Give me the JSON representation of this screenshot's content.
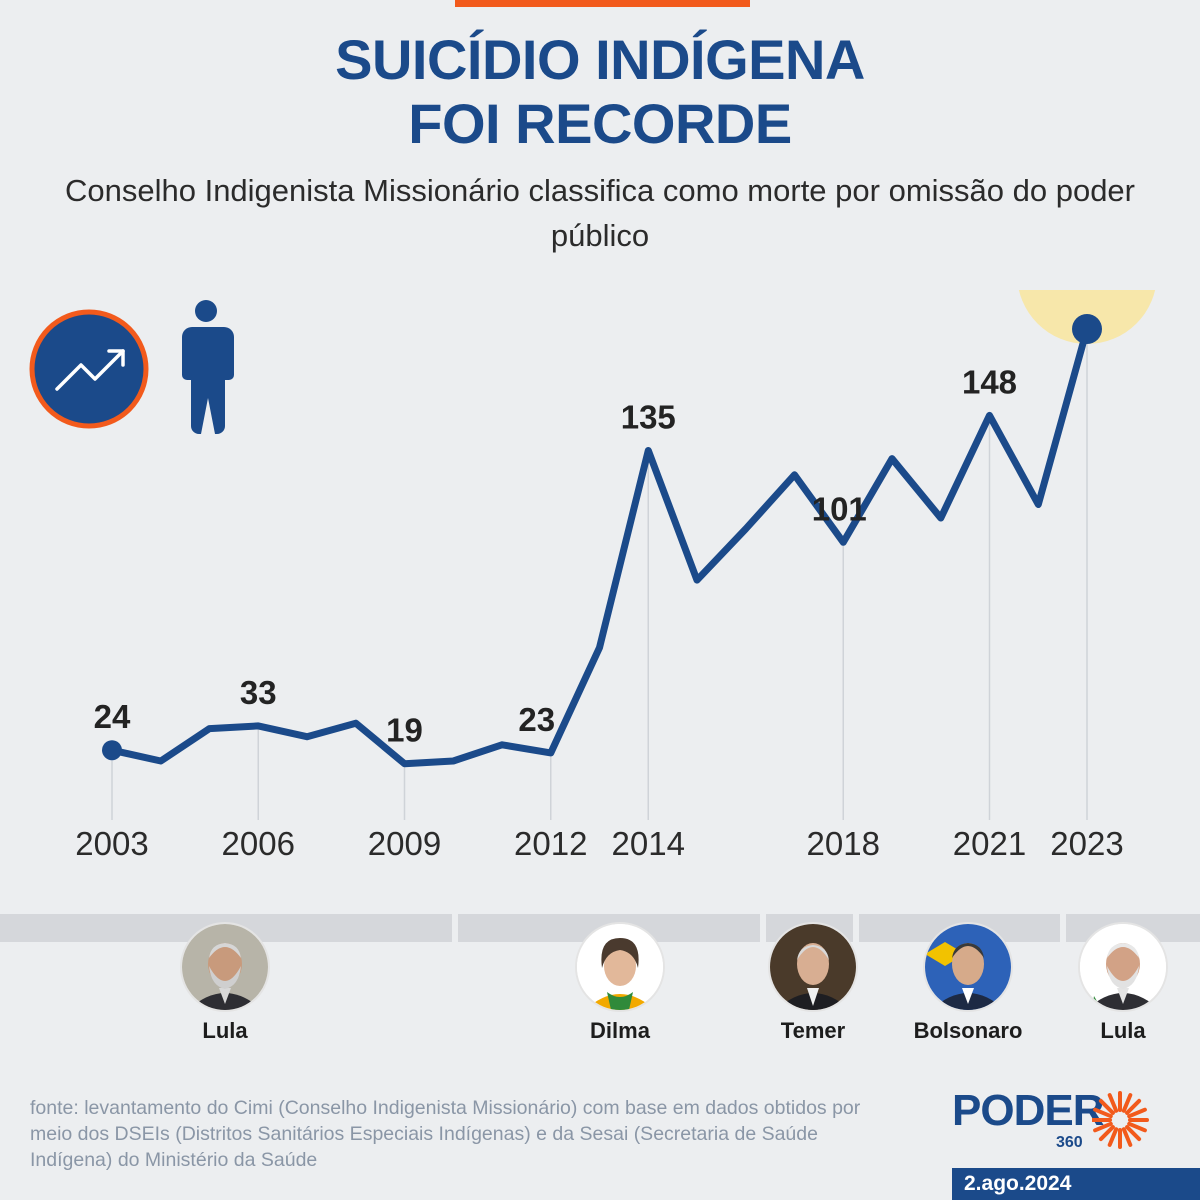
{
  "header": {
    "title_line1": "SUICÍDIO INDÍGENA",
    "title_line2": "FOI RECORDE",
    "subtitle": "Conselho Indigenista Missionário classifica como morte por omissão do poder público"
  },
  "icons": {
    "trend": "trend-up-icon",
    "person": "person-icon"
  },
  "colors": {
    "line": "#1b4a8a",
    "accent": "#f25a1c",
    "highlight": "#f7e7aa",
    "grid": "#cfd3d8"
  },
  "chart_data": {
    "type": "line",
    "title": "SUICÍDIO INDÍGENA FOI RECORDE",
    "x": [
      2003,
      2004,
      2005,
      2006,
      2007,
      2008,
      2009,
      2010,
      2011,
      2012,
      2013,
      2014,
      2015,
      2016,
      2017,
      2018,
      2019,
      2020,
      2021,
      2022,
      2023
    ],
    "series": [
      {
        "values": [
          24,
          20,
          32,
          33,
          29,
          34,
          19,
          20,
          26,
          23,
          62,
          135,
          87,
          106,
          126,
          101,
          132,
          110,
          148,
          115,
          180
        ]
      }
    ],
    "xticks": [
      "2003",
      "2006",
      "2009",
      "2012",
      "2014",
      "2018",
      "2021",
      "2023"
    ],
    "labeled_points": [
      {
        "year": 2003,
        "label": "24"
      },
      {
        "year": 2006,
        "label": "33"
      },
      {
        "year": 2009,
        "label": "19"
      },
      {
        "year": 2012,
        "label": "23"
      },
      {
        "year": 2014,
        "label": "135"
      },
      {
        "year": 2018,
        "label": "101"
      },
      {
        "year": 2021,
        "label": "148"
      },
      {
        "year": 2023,
        "label": "180"
      }
    ],
    "ylim": [
      0,
      190
    ],
    "grid": false,
    "highlight_year": 2023
  },
  "presidents": [
    {
      "name": "Lula",
      "start": 2003,
      "end": 2010
    },
    {
      "name": "Dilma",
      "start": 2011,
      "end": 2016
    },
    {
      "name": "Temer",
      "start": 2016,
      "end": 2018
    },
    {
      "name": "Bolsonaro",
      "start": 2019,
      "end": 2022
    },
    {
      "name": "Lula",
      "start": 2023,
      "end": 2023
    }
  ],
  "footer": {
    "source": "fonte: levantamento do Cimi (Conselho Indigenista Missionário) com base em dados obtidos por meio dos DSEIs (Distritos Sanitários Especiais Indígenas) e da Sesai (Secretaria de Saúde Indígena) do Ministério da Saúde",
    "logo_main": "PODER",
    "logo_sub": "360",
    "date": "2.ago.2024"
  }
}
